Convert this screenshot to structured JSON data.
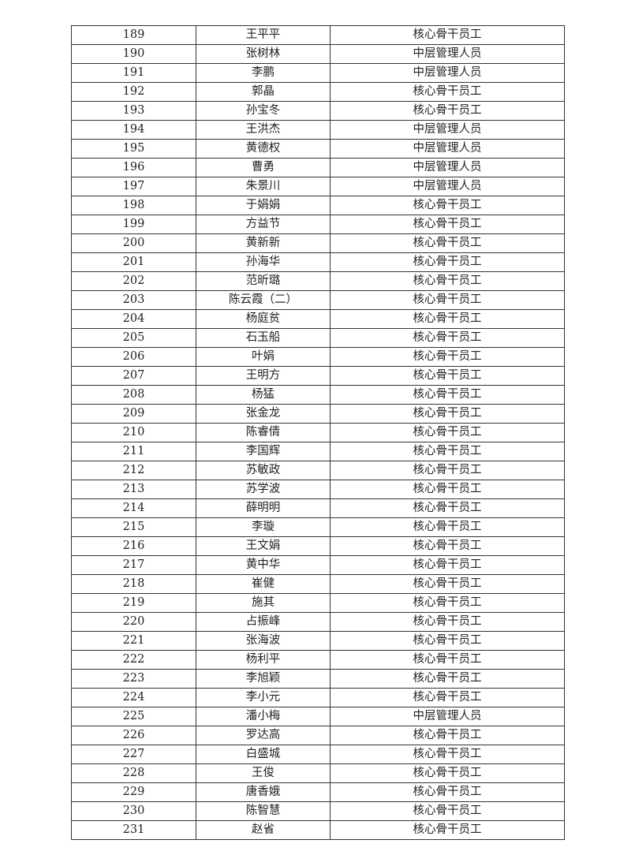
{
  "rows": [
    [
      "189",
      "王平平",
      "核心骨干员工"
    ],
    [
      "190",
      "张树林",
      "中层管理人员"
    ],
    [
      "191",
      "李鹏",
      "中层管理人员"
    ],
    [
      "192",
      "郭晶",
      "核心骨干员工"
    ],
    [
      "193",
      "孙宝冬",
      "核心骨干员工"
    ],
    [
      "194",
      "王洪杰",
      "中层管理人员"
    ],
    [
      "195",
      "黄德权",
      "中层管理人员"
    ],
    [
      "196",
      "曹勇",
      "中层管理人员"
    ],
    [
      "197",
      "朱景川",
      "中层管理人员"
    ],
    [
      "198",
      "于娟娟",
      "核心骨干员工"
    ],
    [
      "199",
      "方益节",
      "核心骨干员工"
    ],
    [
      "200",
      "黄新新",
      "核心骨干员工"
    ],
    [
      "201",
      "孙海华",
      "核心骨干员工"
    ],
    [
      "202",
      "范昕璐",
      "核心骨干员工"
    ],
    [
      "203",
      "陈云霞（二）",
      "核心骨干员工"
    ],
    [
      "204",
      "杨庭贫",
      "核心骨干员工"
    ],
    [
      "205",
      "石玉船",
      "核心骨干员工"
    ],
    [
      "206",
      "叶娟",
      "核心骨干员工"
    ],
    [
      "207",
      "王明方",
      "核心骨干员工"
    ],
    [
      "208",
      "杨猛",
      "核心骨干员工"
    ],
    [
      "209",
      "张金龙",
      "核心骨干员工"
    ],
    [
      "210",
      "陈睿倩",
      "核心骨干员工"
    ],
    [
      "211",
      "李国辉",
      "核心骨干员工"
    ],
    [
      "212",
      "苏敏政",
      "核心骨干员工"
    ],
    [
      "213",
      "苏学波",
      "核心骨干员工"
    ],
    [
      "214",
      "薛明明",
      "核心骨干员工"
    ],
    [
      "215",
      "李璇",
      "核心骨干员工"
    ],
    [
      "216",
      "王文娟",
      "核心骨干员工"
    ],
    [
      "217",
      "黄中华",
      "核心骨干员工"
    ],
    [
      "218",
      "崔健",
      "核心骨干员工"
    ],
    [
      "219",
      "施其",
      "核心骨干员工"
    ],
    [
      "220",
      "占振峰",
      "核心骨干员工"
    ],
    [
      "221",
      "张海波",
      "核心骨干员工"
    ],
    [
      "222",
      "杨利平",
      "核心骨干员工"
    ],
    [
      "223",
      "李旭颖",
      "核心骨干员工"
    ],
    [
      "224",
      "李小元",
      "核心骨干员工"
    ],
    [
      "225",
      "潘小梅",
      "中层管理人员"
    ],
    [
      "226",
      "罗达高",
      "核心骨干员工"
    ],
    [
      "227",
      "白盛城",
      "核心骨干员工"
    ],
    [
      "228",
      "王俊",
      "核心骨干员工"
    ],
    [
      "229",
      "唐香娥",
      "核心骨干员工"
    ],
    [
      "230",
      "陈智慧",
      "核心骨干员工"
    ],
    [
      "231",
      "赵省",
      "核心骨干员工"
    ]
  ]
}
